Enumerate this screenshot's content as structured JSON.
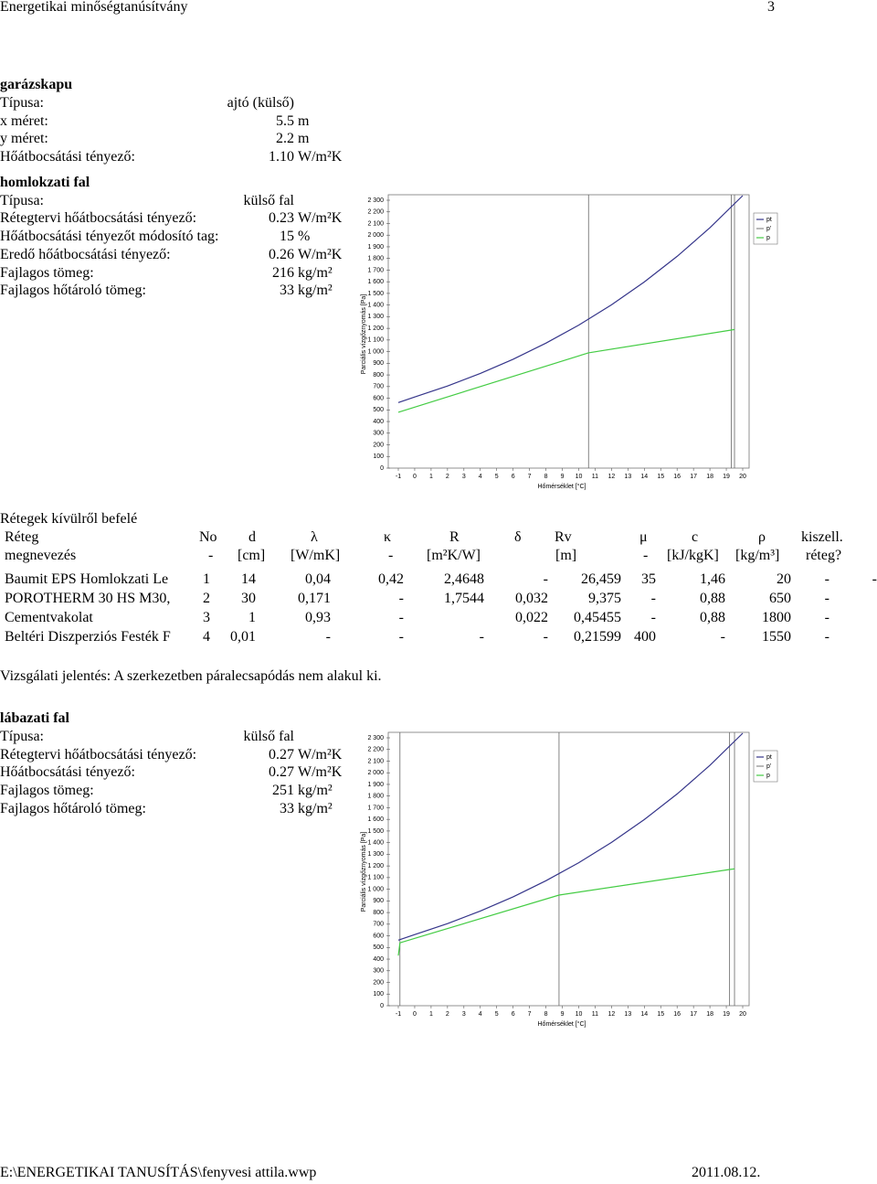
{
  "header": {
    "title": "Energetikai minőségtanúsítvány",
    "page": "3"
  },
  "garazskapu": {
    "heading": "garázskapu",
    "rows": [
      [
        "Típusa:",
        "ajtó (külső)"
      ],
      [
        "x méret:",
        "5.5",
        "m"
      ],
      [
        "y méret:",
        "2.2",
        "m"
      ],
      [
        "Hőátbocsátási tényező:",
        "1.10",
        "W/m²K"
      ]
    ]
  },
  "homlokzati": {
    "heading": "homlokzati fal",
    "rows": [
      [
        "Típusa:",
        "külső fal"
      ],
      [
        "Rétegtervi hőátbocsátási tényező:",
        "0.23",
        "W/m²K"
      ],
      [
        "Hőátbocsátási tényezőt módosító tag:",
        "15",
        "%"
      ],
      [
        "Eredő hőátbocsátási tényező:",
        "0.26",
        "W/m²K"
      ],
      [
        "Fajlagos tömeg:",
        "216",
        "kg/m²"
      ],
      [
        "Fajlagos hőtároló tömeg:",
        "33",
        "kg/m²"
      ]
    ]
  },
  "layers": {
    "heading": "Rétegek kívülről befelé",
    "header": [
      [
        "Réteg",
        "No",
        "d",
        "λ",
        "κ",
        "R",
        "δ",
        "Rv",
        "μ",
        "c",
        "ρ",
        "kiszell."
      ],
      [
        "megnevezés",
        "-",
        "[cm]",
        "[W/mK]",
        "-",
        "[m²K/W]",
        null,
        "[m]",
        "-",
        "[kJ/kgK]",
        "[kg/m³]",
        "réteg?"
      ]
    ],
    "rows": [
      [
        "Baumit EPS Homlokzati Le",
        "1",
        "14",
        "0,04",
        "0,42",
        "2,4648",
        "-",
        "26,459",
        "35",
        "1,46",
        "20",
        "-",
        "-"
      ],
      [
        "POROTHERM 30 HS M30,",
        "2",
        "30",
        "0,171",
        "-",
        "1,7544",
        "0,032",
        "9,375",
        "-",
        "0,88",
        "650",
        "-"
      ],
      [
        "Cementvakolat",
        "3",
        "1",
        "0,93",
        "-",
        null,
        "0,022",
        "0,45455",
        "-",
        "0,88",
        "1800",
        "-"
      ],
      [
        "Beltéri Diszperziós Festék F",
        "4",
        "0,01",
        "-",
        "-",
        "-",
        "-",
        "0,21599",
        "400",
        "-",
        "1550",
        "-"
      ]
    ]
  },
  "report": "Vizsgálati jelentés: A szerkezetben páralecsapódás nem alakul ki.",
  "labazati": {
    "heading": "lábazati fal",
    "rows": [
      [
        "Típusa:",
        "külső fal"
      ],
      [
        "Rétegtervi hőátbocsátási tényező:",
        "0.27",
        "W/m²K"
      ],
      [
        "Hőátbocsátási tényező:",
        "0.27",
        "W/m²K"
      ],
      [
        "Fajlagos tömeg:",
        "251",
        "kg/m²"
      ],
      [
        "Fajlagos hőtároló tömeg:",
        "33",
        "kg/m²"
      ]
    ]
  },
  "footer": {
    "path": "E:\\ENERGETIKAI TANUSÍTÁS\\fenyvesi attila.wwp",
    "date": "2011.08.12."
  },
  "chart_data": [
    {
      "type": "line",
      "xlabel": "Hőmérséklet [°C]",
      "ylabel": "Parciális vízgőznyomás [Pa]",
      "xlim": [
        -1,
        20
      ],
      "xticks": [
        -1,
        0,
        1,
        2,
        3,
        4,
        5,
        6,
        7,
        8,
        9,
        10,
        11,
        12,
        13,
        14,
        15,
        16,
        17,
        18,
        19,
        20
      ],
      "ylim": [
        0,
        2300
      ],
      "yticks": [
        0,
        100,
        200,
        300,
        400,
        500,
        600,
        700,
        800,
        900,
        {
          "value": 1000,
          "label": "1 000"
        },
        {
          "value": 1100,
          "label": "1 100"
        },
        {
          "value": 1200,
          "label": "1 200"
        },
        {
          "value": 1300,
          "label": "1 300"
        },
        {
          "value": 1400,
          "label": "1 400"
        },
        {
          "value": 1500,
          "label": "1 500"
        },
        {
          "value": 1600,
          "label": "1 600"
        },
        {
          "value": 1700,
          "label": "1 700"
        },
        {
          "value": 1800,
          "label": "1 800"
        },
        {
          "value": 1900,
          "label": "1 900"
        },
        {
          "value": 2000,
          "label": "2 000"
        },
        {
          "value": 2100,
          "label": "2 100"
        },
        {
          "value": 2200,
          "label": "2 200"
        },
        {
          "value": 2300,
          "label": "2 300"
        }
      ],
      "boundaries": [
        10.6,
        19.3,
        19.5
      ],
      "series": [
        {
          "name": "pt",
          "color": "#35358a",
          "x": [
            -1,
            0,
            2,
            4,
            6,
            8,
            10,
            12,
            14,
            16,
            18,
            20
          ],
          "values": [
            563,
            611,
            705,
            813,
            935,
            1073,
            1228,
            1402,
            1598,
            1818,
            2064,
            2339
          ]
        },
        {
          "name": "p'",
          "color": "#8a8a8a",
          "x": [],
          "values": []
        },
        {
          "name": "p",
          "color": "#44cc44",
          "x": [
            -1,
            10.6,
            19.3,
            19.5
          ],
          "values": [
            480,
            990,
            1185,
            1190
          ]
        }
      ]
    },
    {
      "type": "line",
      "xlabel": "Hőmérséklet [°C]",
      "ylabel": "Parciális vízgőznyomás [Pa]",
      "xlim": [
        -1,
        20
      ],
      "xticks": [
        -1,
        0,
        1,
        2,
        3,
        4,
        5,
        6,
        7,
        8,
        9,
        10,
        11,
        12,
        13,
        14,
        15,
        16,
        17,
        18,
        19,
        20
      ],
      "ylim": [
        0,
        2300
      ],
      "yticks": [
        0,
        100,
        200,
        300,
        400,
        500,
        600,
        700,
        800,
        900,
        {
          "value": 1000,
          "label": "1 000"
        },
        {
          "value": 1100,
          "label": "1 100"
        },
        {
          "value": 1200,
          "label": "1 200"
        },
        {
          "value": 1300,
          "label": "1 300"
        },
        {
          "value": 1400,
          "label": "1 400"
        },
        {
          "value": 1500,
          "label": "1 500"
        },
        {
          "value": 1600,
          "label": "1 600"
        },
        {
          "value": 1700,
          "label": "1 700"
        },
        {
          "value": 1800,
          "label": "1 800"
        },
        {
          "value": 1900,
          "label": "1 900"
        },
        {
          "value": 2000,
          "label": "2 000"
        },
        {
          "value": 2100,
          "label": "2 100"
        },
        {
          "value": 2200,
          "label": "2 200"
        },
        {
          "value": 2300,
          "label": "2 300"
        }
      ],
      "boundaries": [
        -0.9,
        8.8,
        19.2,
        19.5
      ],
      "series": [
        {
          "name": "pt",
          "color": "#35358a",
          "x": [
            -1,
            0,
            2,
            4,
            6,
            8,
            10,
            12,
            14,
            16,
            18,
            20
          ],
          "values": [
            563,
            611,
            705,
            813,
            935,
            1073,
            1228,
            1402,
            1598,
            1818,
            2064,
            2339
          ]
        },
        {
          "name": "p'",
          "color": "#8a8a8a",
          "x": [],
          "values": []
        },
        {
          "name": "p",
          "color": "#44cc44",
          "x": [
            -1,
            -0.9,
            8.8,
            19.2,
            19.5
          ],
          "values": [
            430,
            540,
            950,
            1170,
            1175
          ]
        }
      ]
    }
  ]
}
